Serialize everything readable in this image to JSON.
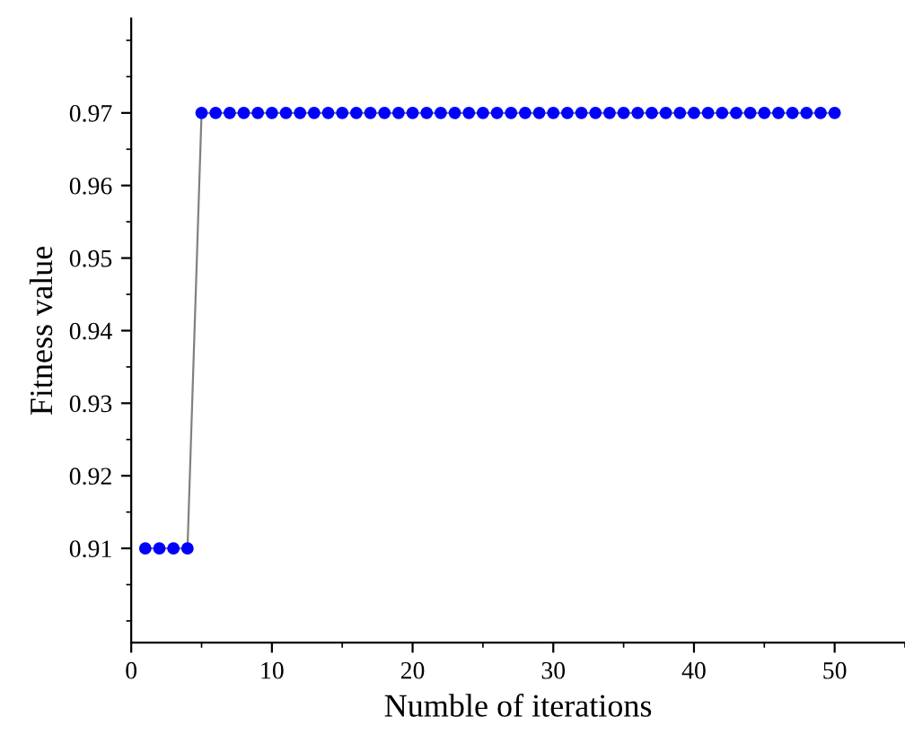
{
  "chart_data": {
    "type": "line",
    "xlabel": "Numble of iterations",
    "ylabel": "Fitness value",
    "x": [
      1,
      2,
      3,
      4,
      5,
      6,
      7,
      8,
      9,
      10,
      11,
      12,
      13,
      14,
      15,
      16,
      17,
      18,
      19,
      20,
      21,
      22,
      23,
      24,
      25,
      26,
      27,
      28,
      29,
      30,
      31,
      32,
      33,
      34,
      35,
      36,
      37,
      38,
      39,
      40,
      41,
      42,
      43,
      44,
      45,
      46,
      47,
      48,
      49,
      50
    ],
    "series": [
      {
        "color": "#0000ff",
        "values": [
          0.91,
          0.91,
          0.91,
          0.91,
          0.97,
          0.97,
          0.97,
          0.97,
          0.97,
          0.97,
          0.97,
          0.97,
          0.97,
          0.97,
          0.97,
          0.97,
          0.97,
          0.97,
          0.97,
          0.97,
          0.97,
          0.97,
          0.97,
          0.97,
          0.97,
          0.97,
          0.97,
          0.97,
          0.97,
          0.97,
          0.97,
          0.97,
          0.97,
          0.97,
          0.97,
          0.97,
          0.97,
          0.97,
          0.97,
          0.97,
          0.97,
          0.97,
          0.97,
          0.97,
          0.97,
          0.97,
          0.97,
          0.97,
          0.97,
          0.97
        ]
      }
    ],
    "marker": "circle",
    "line_style": "solid",
    "grid": false,
    "legend": false,
    "xlim": [
      0,
      55
    ],
    "xticks": [
      0,
      10,
      20,
      30,
      40,
      50
    ],
    "ylim": [
      0.897,
      0.983
    ],
    "yticks": [
      0.91,
      0.92,
      0.93,
      0.94,
      0.95,
      0.96,
      0.97
    ]
  }
}
